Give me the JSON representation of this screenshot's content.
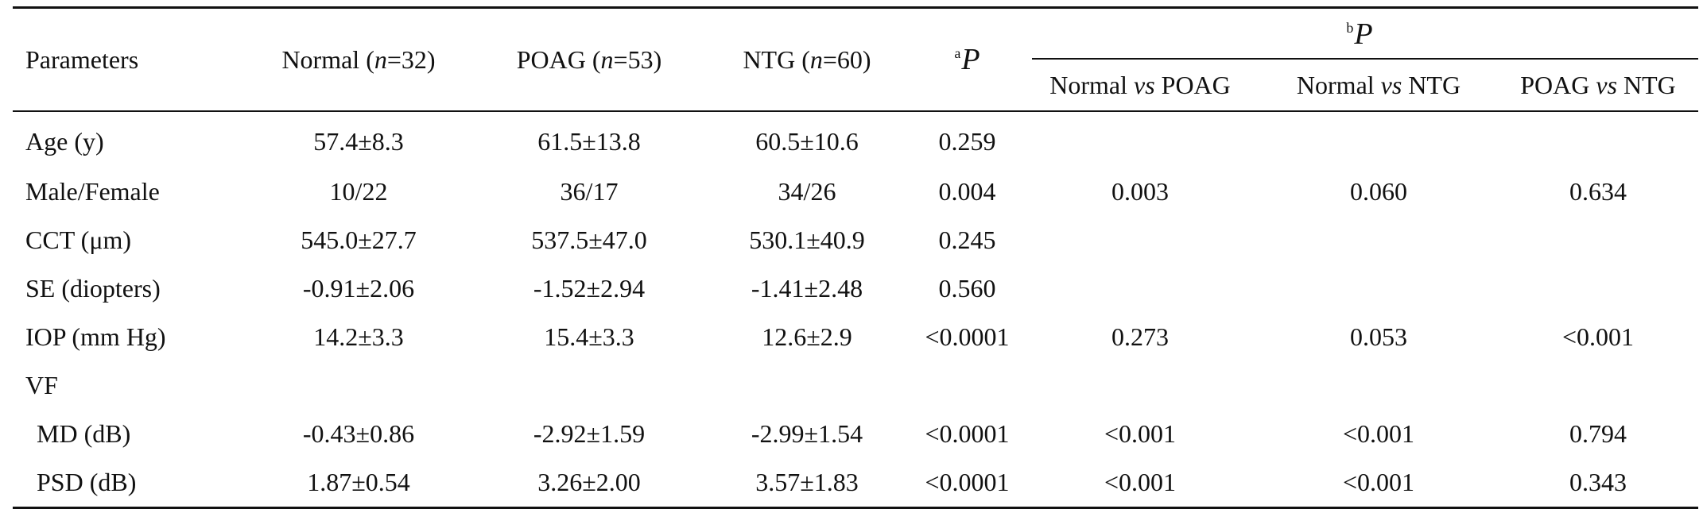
{
  "table": {
    "header": {
      "parameters": "Parameters",
      "normal": {
        "label": "Normal (",
        "n_italic": "n",
        "value": "=32)"
      },
      "poag": {
        "label": "POAG (",
        "n_italic": "n",
        "value": "=53)"
      },
      "ntg": {
        "label": "NTG (",
        "n_italic": "n",
        "value": "=60)"
      },
      "ap": {
        "sup": "a",
        "symbol": "P"
      },
      "bp": {
        "sup": "b",
        "symbol": "P"
      },
      "comparisons": [
        {
          "left": "Normal ",
          "vs": "vs",
          "right": " POAG"
        },
        {
          "left": "Normal ",
          "vs": "vs",
          "right": " NTG"
        },
        {
          "left": "POAG ",
          "vs": "vs",
          "right": " NTG"
        }
      ]
    },
    "rows": [
      {
        "param": "Age (y)",
        "normal": "57.4±8.3",
        "poag": "61.5±13.8",
        "ntg": "60.5±10.6",
        "ap": "0.259",
        "normal_vs_poag": "",
        "normal_vs_ntg": "",
        "poag_vs_ntg": ""
      },
      {
        "param": "Male/Female",
        "normal": "10/22",
        "poag": "36/17",
        "ntg": "34/26",
        "ap": "0.004",
        "normal_vs_poag": "0.003",
        "normal_vs_ntg": "0.060",
        "poag_vs_ntg": "0.634"
      },
      {
        "param": "CCT (μm)",
        "normal": "545.0±27.7",
        "poag": "537.5±47.0",
        "ntg": "530.1±40.9",
        "ap": "0.245",
        "normal_vs_poag": "",
        "normal_vs_ntg": "",
        "poag_vs_ntg": ""
      },
      {
        "param": "SE (diopters)",
        "normal": "-0.91±2.06",
        "poag": "-1.52±2.94",
        "ntg": "-1.41±2.48",
        "ap": "0.560",
        "normal_vs_poag": "",
        "normal_vs_ntg": "",
        "poag_vs_ntg": ""
      },
      {
        "param": "IOP (mm Hg)",
        "normal": "14.2±3.3",
        "poag": "15.4±3.3",
        "ntg": "12.6±2.9",
        "ap": "<0.0001",
        "normal_vs_poag": "0.273",
        "normal_vs_ntg": "0.053",
        "poag_vs_ntg": "<0.001"
      },
      {
        "param": "VF",
        "normal": "",
        "poag": "",
        "ntg": "",
        "ap": "",
        "normal_vs_poag": "",
        "normal_vs_ntg": "",
        "poag_vs_ntg": ""
      },
      {
        "param": "MD (dB)",
        "normal": "-0.43±0.86",
        "poag": "-2.92±1.59",
        "ntg": "-2.99±1.54",
        "ap": "<0.0001",
        "normal_vs_poag": "<0.001",
        "normal_vs_ntg": "<0.001",
        "poag_vs_ntg": "0.794"
      },
      {
        "param": "PSD (dB)",
        "normal": "1.87±0.54",
        "poag": "3.26±2.00",
        "ntg": "3.57±1.83",
        "ap": "<0.0001",
        "normal_vs_poag": "<0.001",
        "normal_vs_ntg": "<0.001",
        "poag_vs_ntg": "0.343"
      }
    ]
  }
}
